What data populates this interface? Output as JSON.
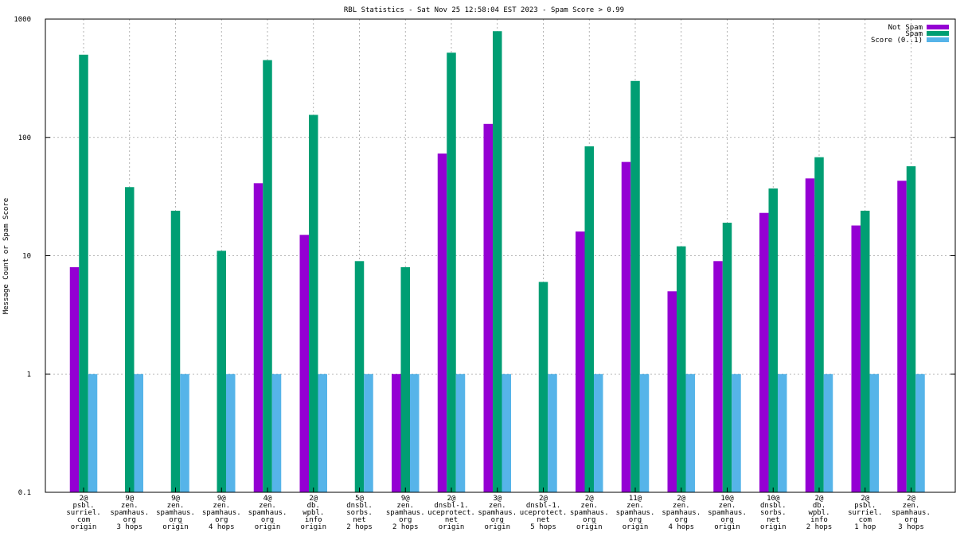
{
  "chart_data": {
    "type": "bar",
    "title": "RBL Statistics - Sat Nov 25 12:58:04 EST 2023 - Spam Score > 0.99",
    "xlabel": "",
    "ylabel": "Message Count or Spam Score",
    "yscale": "log",
    "ylim": [
      0.1,
      1000
    ],
    "yticks": [
      0.1,
      1,
      10,
      100,
      1000
    ],
    "ytick_labels": [
      "0.1",
      "1",
      "10",
      "100",
      "1000"
    ],
    "grid": true,
    "legend_position": "top-right",
    "categories": [
      [
        "2@",
        "psbl.",
        "surriel.",
        "com",
        "origin"
      ],
      [
        "9@",
        "zen.",
        "spamhaus.",
        "org",
        "3 hops"
      ],
      [
        "9@",
        "zen.",
        "spamhaus.",
        "org",
        "origin"
      ],
      [
        "9@",
        "zen.",
        "spamhaus.",
        "org",
        "4 hops"
      ],
      [
        "4@",
        "zen.",
        "spamhaus.",
        "org",
        "origin"
      ],
      [
        "2@",
        "db.",
        "wpbl.",
        "info",
        "origin"
      ],
      [
        "5@",
        "dnsbl.",
        "sorbs.",
        "net",
        "2 hops"
      ],
      [
        "9@",
        "zen.",
        "spamhaus.",
        "org",
        "2 hops"
      ],
      [
        "2@",
        "dnsbl-1.",
        "uceprotect.",
        "net",
        "origin"
      ],
      [
        "3@",
        "zen.",
        "spamhaus.",
        "org",
        "origin"
      ],
      [
        "2@",
        "dnsbl-1.",
        "uceprotect.",
        "net",
        "5 hops"
      ],
      [
        "2@",
        "zen.",
        "spamhaus.",
        "org",
        "origin"
      ],
      [
        "11@",
        "zen.",
        "spamhaus.",
        "org",
        "origin"
      ],
      [
        "2@",
        "zen.",
        "spamhaus.",
        "org",
        "4 hops"
      ],
      [
        "10@",
        "zen.",
        "spamhaus.",
        "org",
        "origin"
      ],
      [
        "10@",
        "dnsbl.",
        "sorbs.",
        "net",
        "origin"
      ],
      [
        "2@",
        "db.",
        "wpbl.",
        "info",
        "2 hops"
      ],
      [
        "2@",
        "psbl.",
        "surriel.",
        "com",
        "1 hop"
      ],
      [
        "2@",
        "zen.",
        "spamhaus.",
        "org",
        "3 hops"
      ]
    ],
    "series": [
      {
        "name": "Not Spam",
        "color": "#9400d3",
        "values": [
          8,
          null,
          null,
          null,
          41,
          15,
          null,
          1,
          73,
          130,
          null,
          16,
          62,
          5,
          9,
          23,
          45,
          18,
          43
        ]
      },
      {
        "name": "Spam",
        "color": "#009e73",
        "values": [
          500,
          38,
          24,
          11,
          450,
          155,
          9,
          8,
          520,
          790,
          6,
          84,
          300,
          12,
          19,
          37,
          68,
          24,
          57
        ]
      },
      {
        "name": "Score (0..1)",
        "color": "#56b4e9",
        "values": [
          1,
          1,
          1,
          1,
          1,
          1,
          1,
          1,
          1,
          1,
          1,
          1,
          1,
          1,
          1,
          1,
          1,
          1,
          1
        ]
      }
    ]
  }
}
